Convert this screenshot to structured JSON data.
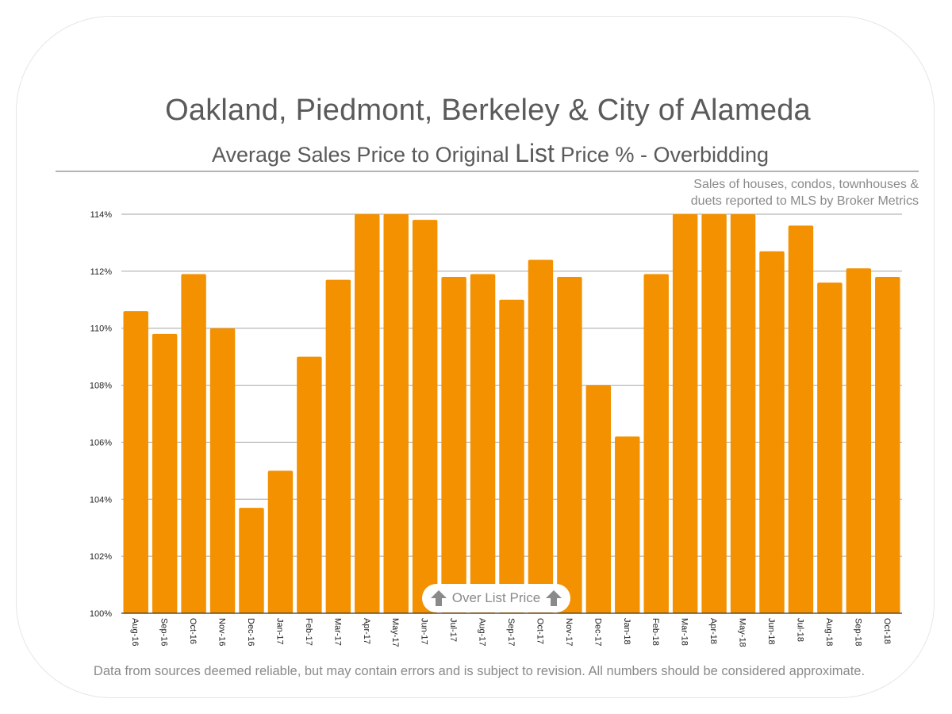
{
  "header": {
    "title": "Oakland, Piedmont, Berkeley & City of Alameda",
    "subtitle_pre": "Average Sales Price to Original ",
    "subtitle_emph": "List",
    "subtitle_post": " Price % - Overbidding"
  },
  "note": {
    "line1": "Sales of houses, condos, townhouses &",
    "line2": "duets reported to MLS by Broker Metrics"
  },
  "callout": {
    "label": "Over List Price",
    "icon": "up-arrow-icon"
  },
  "footer": {
    "text": "Data from sources deemed reliable, but may contain errors and is subject to revision.  All numbers should be considered approximate."
  },
  "colors": {
    "bar": "#F39100",
    "text": "#5a5a5a",
    "grid": "#a6a6a6"
  },
  "chart_data": {
    "type": "bar",
    "title": "Oakland, Piedmont, Berkeley & City of Alameda",
    "subtitle": "Average Sales Price to Original List Price % - Overbidding",
    "categories": [
      "Aug-16",
      "Sep-16",
      "Oct-16",
      "Nov-16",
      "Dec-16",
      "Jan-17",
      "Feb-17",
      "Mar-17",
      "Apr-17",
      "May-17",
      "Jun-17",
      "Jul-17",
      "Aug-17",
      "Sep-17",
      "Oct-17",
      "Nov-17",
      "Dec-17",
      "Jan-18",
      "Feb-18",
      "Mar-18",
      "Apr-18",
      "May-18",
      "Jun-18",
      "Jul-18",
      "Aug-18",
      "Sep-18",
      "Oct-18"
    ],
    "values": [
      110.6,
      109.8,
      111.9,
      110.0,
      103.7,
      105.0,
      109.0,
      111.7,
      114.0,
      114.0,
      113.8,
      111.8,
      111.9,
      111.0,
      112.4,
      111.8,
      108.0,
      106.2,
      111.9,
      114.0,
      114.0,
      114.0,
      112.7,
      113.6,
      111.6,
      112.1,
      111.8
    ],
    "ylim": [
      100,
      114
    ],
    "yticks": [
      100,
      102,
      104,
      106,
      108,
      110,
      112,
      114
    ],
    "ytick_labels": [
      "100%",
      "102%",
      "104%",
      "106%",
      "108%",
      "110%",
      "112%",
      "114%"
    ],
    "xlabel": "",
    "ylabel": "",
    "grid": true,
    "legend": "none"
  }
}
